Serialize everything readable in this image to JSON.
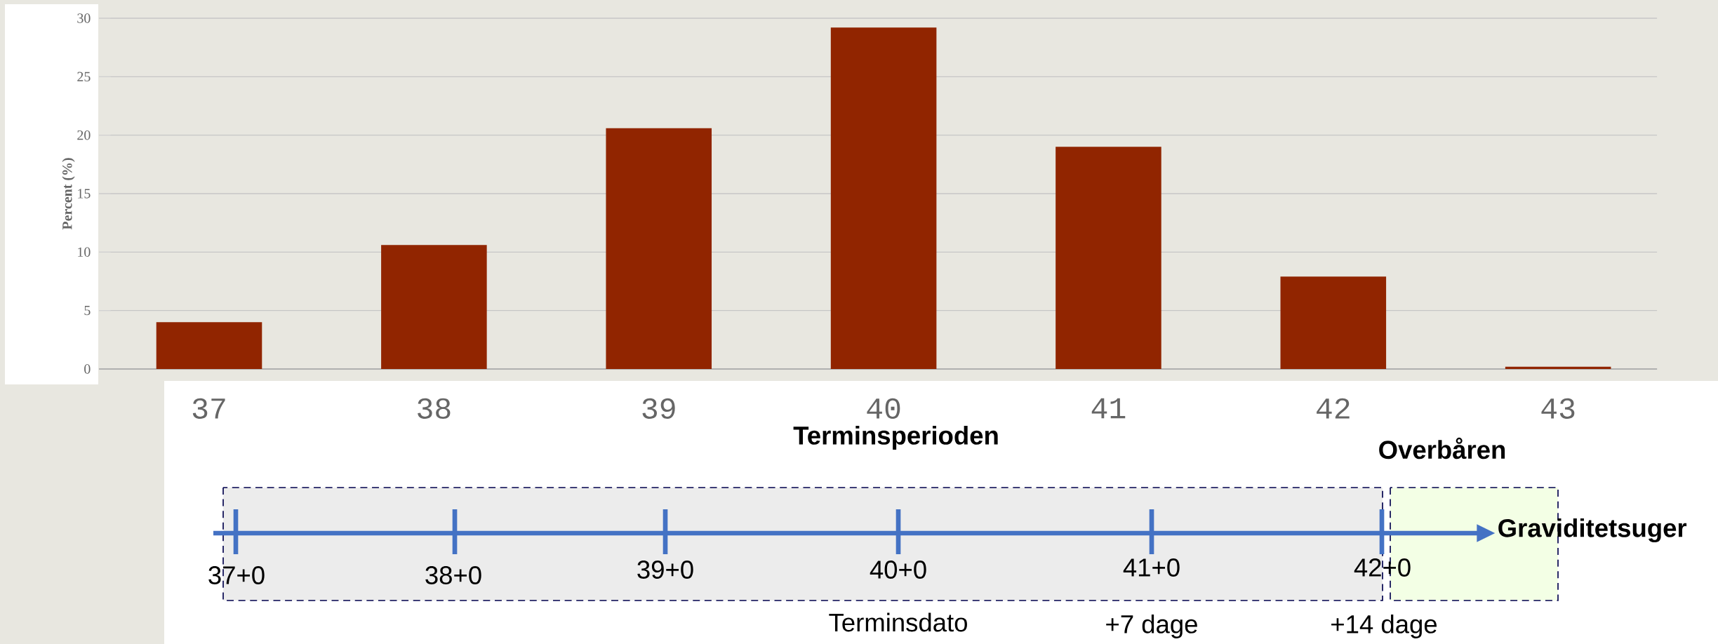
{
  "chart_data": {
    "type": "bar",
    "ylabel": "Percent (%)",
    "categories": [
      "37",
      "38",
      "39",
      "40",
      "41",
      "42",
      "43"
    ],
    "values": [
      4.0,
      10.6,
      20.6,
      29.2,
      19.0,
      7.9,
      0.2
    ],
    "color": "#912500",
    "ylim": [
      0,
      30
    ],
    "yticks": [
      0,
      5,
      10,
      15,
      20,
      25,
      30
    ],
    "grid": "y",
    "annotations": [
      "Terminsperioden",
      "Overbåren",
      "Graviditetsuger",
      "37+0",
      "38+0",
      "39+0",
      "40+0",
      "41+0",
      "42+0",
      "Terminsdato",
      "+7 dage",
      "+14 dage"
    ]
  }
}
